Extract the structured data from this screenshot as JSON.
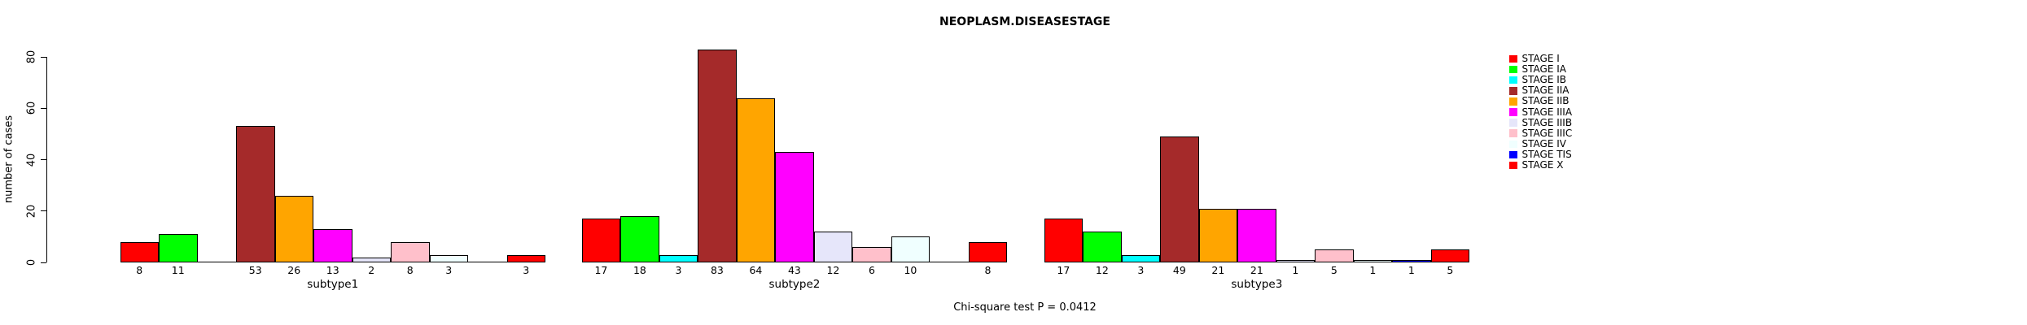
{
  "chart_data": {
    "type": "bar",
    "title": "NEOPLASM.DISEASESTAGE",
    "ylabel": "number of cases",
    "xlabel": "",
    "ylim": [
      0,
      80
    ],
    "yticks": [
      0,
      20,
      40,
      60,
      80
    ],
    "grid": false,
    "legend_position": "right",
    "bar_value_labels_shown": true,
    "annotation": "Chi-square test P = 0.0412",
    "categories": [
      "subtype1",
      "subtype2",
      "subtype3"
    ],
    "series": [
      {
        "name": "STAGE I",
        "color": "#FF0000",
        "values": [
          8,
          17,
          17
        ]
      },
      {
        "name": "STAGE IA",
        "color": "#00FF00",
        "values": [
          11,
          18,
          12
        ]
      },
      {
        "name": "STAGE IB",
        "color": "#00FFFF",
        "values": [
          0,
          3,
          3
        ]
      },
      {
        "name": "STAGE IIA",
        "color": "#A52A2A",
        "values": [
          53,
          83,
          49
        ]
      },
      {
        "name": "STAGE IIB",
        "color": "#FFA500",
        "values": [
          26,
          64,
          21
        ]
      },
      {
        "name": "STAGE IIIA",
        "color": "#FF00FF",
        "values": [
          13,
          43,
          21
        ]
      },
      {
        "name": "STAGE IIIB",
        "color": "#E6E6FA",
        "values": [
          2,
          12,
          1
        ]
      },
      {
        "name": "STAGE IIIC",
        "color": "#FFC0CB",
        "values": [
          8,
          6,
          5
        ]
      },
      {
        "name": "STAGE IV",
        "color": "#F0FFFF",
        "values": [
          3,
          10,
          1
        ]
      },
      {
        "name": "STAGE TIS",
        "color": "#0000FF",
        "values": [
          0,
          0,
          1
        ]
      },
      {
        "name": "STAGE X",
        "color": "#FF0000",
        "values": [
          3,
          8,
          5
        ]
      }
    ]
  }
}
